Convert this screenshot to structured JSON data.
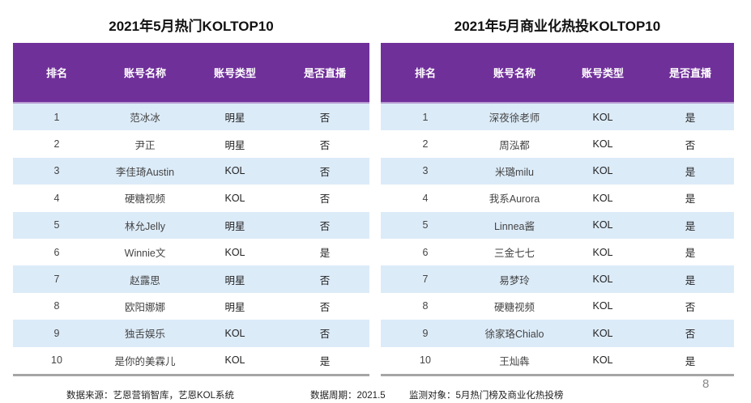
{
  "left": {
    "title": "2021年5月热门KOLTOP10",
    "headers": [
      "排名",
      "账号名称",
      "账号类型",
      "是否直播"
    ],
    "rows": [
      [
        "1",
        "范冰冰",
        "明星",
        "否"
      ],
      [
        "2",
        "尹正",
        "明星",
        "否"
      ],
      [
        "3",
        "李佳琦Austin",
        "KOL",
        "否"
      ],
      [
        "4",
        "硬糖视频",
        "KOL",
        "否"
      ],
      [
        "5",
        "林允Jelly",
        "明星",
        "否"
      ],
      [
        "6",
        "Winnie文",
        "KOL",
        "是"
      ],
      [
        "7",
        "赵露思",
        "明星",
        "否"
      ],
      [
        "8",
        "欧阳娜娜",
        "明星",
        "否"
      ],
      [
        "9",
        "独舌娱乐",
        "KOL",
        "否"
      ],
      [
        "10",
        "是你的美霖儿",
        "KOL",
        "是"
      ]
    ]
  },
  "right": {
    "title": "2021年5月商业化热投KOLTOP10",
    "headers": [
      "排名",
      "账号名称",
      "账号类型",
      "是否直播"
    ],
    "rows": [
      [
        "1",
        "深夜徐老师",
        "KOL",
        "是"
      ],
      [
        "2",
        "周泓都",
        "KOL",
        "否"
      ],
      [
        "3",
        "米璐milu",
        "KOL",
        "是"
      ],
      [
        "4",
        "我系Aurora",
        "KOL",
        "是"
      ],
      [
        "5",
        "Linnea酱",
        "KOL",
        "是"
      ],
      [
        "6",
        "三金七七",
        "KOL",
        "是"
      ],
      [
        "7",
        "易梦玲",
        "KOL",
        "是"
      ],
      [
        "8",
        "硬糖视频",
        "KOL",
        "否"
      ],
      [
        "9",
        "徐家珞Chialo",
        "KOL",
        "否"
      ],
      [
        "10",
        "王灿犇",
        "KOL",
        "是"
      ]
    ]
  },
  "footer": {
    "source": "数据来源：艺恩营销智库，艺恩KOL系统",
    "period": "数据周期：2021.5",
    "target": "监测对象：5月热门榜及商业化热投榜",
    "page_number": "8"
  }
}
